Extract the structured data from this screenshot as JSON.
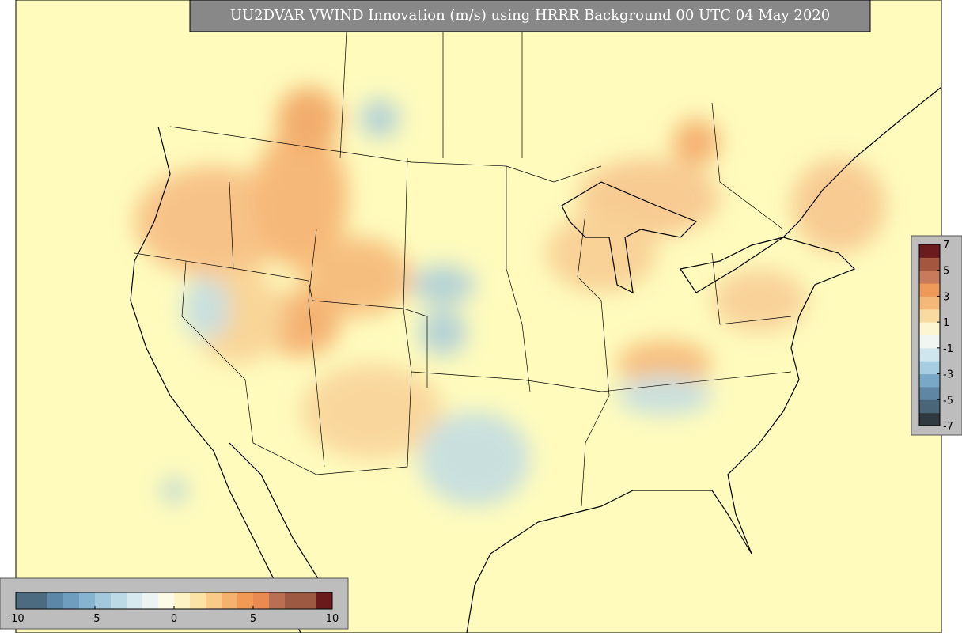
{
  "title": "UU2DVAR VWIND Innovation (m/s) using HRRR Background 00 UTC 04 May 2020",
  "colorbar_right": {
    "range": [
      -7,
      7
    ],
    "ticks": [
      7,
      5,
      3,
      1,
      -1,
      -3,
      -5,
      -7
    ],
    "colors": [
      "#2f3a40",
      "#4a6478",
      "#5f87a4",
      "#79a8c6",
      "#a6cde0",
      "#cfe6ee",
      "#f2f6f2",
      "#fdf6d2",
      "#f7dba0",
      "#f4b878",
      "#ef9a58",
      "#c87a5a",
      "#a4563f",
      "#6b1b1e"
    ]
  },
  "colorbar_bottom": {
    "range": [
      -10,
      10
    ],
    "ticks": [
      -10,
      -5,
      0,
      5,
      10
    ],
    "colors": [
      "#4c6a80",
      "#4c6a80",
      "#5c87a6",
      "#6f9dbd",
      "#86b3cf",
      "#a3c8dc",
      "#bcd9e6",
      "#d5e9ef",
      "#ebf4f1",
      "#fbfbe6",
      "#fdf3c4",
      "#fbe3a6",
      "#f8cc88",
      "#f5b26d",
      "#f19a56",
      "#e98a52",
      "#b86f54",
      "#9d5942",
      "#9d5942",
      "#6b1a1c"
    ]
  }
}
